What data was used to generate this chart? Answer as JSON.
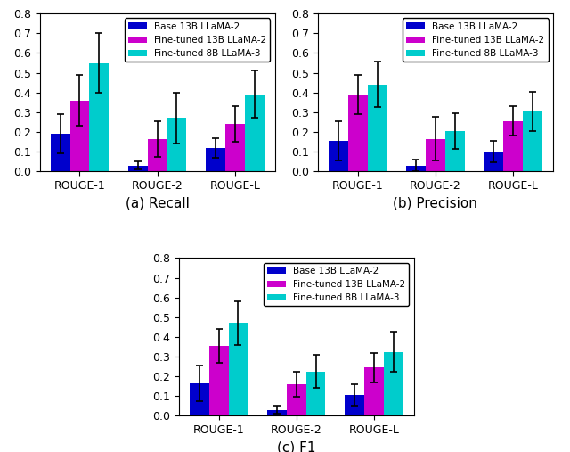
{
  "subplots": [
    {
      "title": "(a) Recall",
      "categories": [
        "ROUGE-1",
        "ROUGE-2",
        "ROUGE-L"
      ],
      "values": {
        "base": [
          0.19,
          0.03,
          0.12
        ],
        "ft13b": [
          0.36,
          0.165,
          0.24
        ],
        "ft8b": [
          0.55,
          0.27,
          0.39
        ]
      },
      "errors": {
        "base": [
          0.1,
          0.02,
          0.05
        ],
        "ft13b": [
          0.13,
          0.09,
          0.09
        ],
        "ft8b": [
          0.15,
          0.13,
          0.12
        ]
      }
    },
    {
      "title": "(b) Precision",
      "categories": [
        "ROUGE-1",
        "ROUGE-2",
        "ROUGE-L"
      ],
      "values": {
        "base": [
          0.155,
          0.03,
          0.1
        ],
        "ft13b": [
          0.39,
          0.165,
          0.255
        ],
        "ft8b": [
          0.44,
          0.205,
          0.305
        ]
      },
      "errors": {
        "base": [
          0.1,
          0.03,
          0.055
        ],
        "ft13b": [
          0.1,
          0.11,
          0.075
        ],
        "ft8b": [
          0.115,
          0.09,
          0.1
        ]
      }
    },
    {
      "title": "(c) F1",
      "categories": [
        "ROUGE-1",
        "ROUGE-2",
        "ROUGE-L"
      ],
      "values": {
        "base": [
          0.165,
          0.03,
          0.105
        ],
        "ft13b": [
          0.355,
          0.16,
          0.245
        ],
        "ft8b": [
          0.47,
          0.225,
          0.325
        ]
      },
      "errors": {
        "base": [
          0.09,
          0.02,
          0.055
        ],
        "ft13b": [
          0.085,
          0.065,
          0.075
        ],
        "ft8b": [
          0.11,
          0.085,
          0.1
        ]
      }
    }
  ],
  "colors": {
    "base": "#0000cc",
    "ft13b": "#cc00cc",
    "ft8b": "#00cccc"
  },
  "legend_labels": [
    "Base 13B LLaMA-2",
    "Fine-tuned 13B LLaMA-2",
    "Fine-tuned 8B LLaMA-3"
  ],
  "ylim": [
    0,
    0.8
  ],
  "yticks": [
    0.0,
    0.1,
    0.2,
    0.3,
    0.4,
    0.5,
    0.6,
    0.7,
    0.8
  ],
  "bar_width": 0.25,
  "figsize": [
    6.4,
    5.07
  ],
  "dpi": 100
}
